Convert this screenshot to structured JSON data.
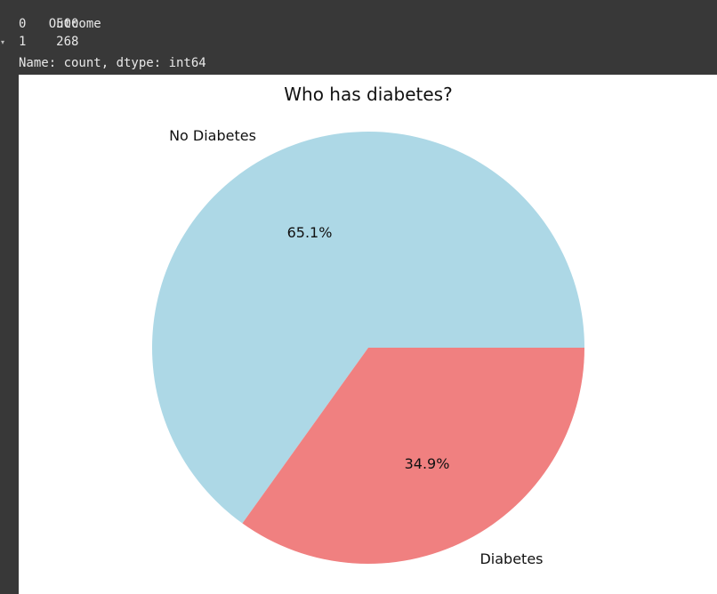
{
  "output": {
    "lines": [
      {
        "index": "Outcome",
        "value": ""
      },
      {
        "index": "0",
        "value": "500"
      },
      {
        "index": "1",
        "value": "268"
      }
    ],
    "footer": "Name: count, dtype: int64"
  },
  "chart_data": {
    "type": "pie",
    "title": "Who has diabetes?",
    "labels": [
      "No Diabetes",
      "Diabetes"
    ],
    "values": [
      500,
      268
    ],
    "percent_labels": [
      "65.1%",
      "34.9%"
    ],
    "colors": [
      "#add8e6",
      "#f08080"
    ],
    "start_angle_deg": 0,
    "direction": "counterclockwise"
  }
}
